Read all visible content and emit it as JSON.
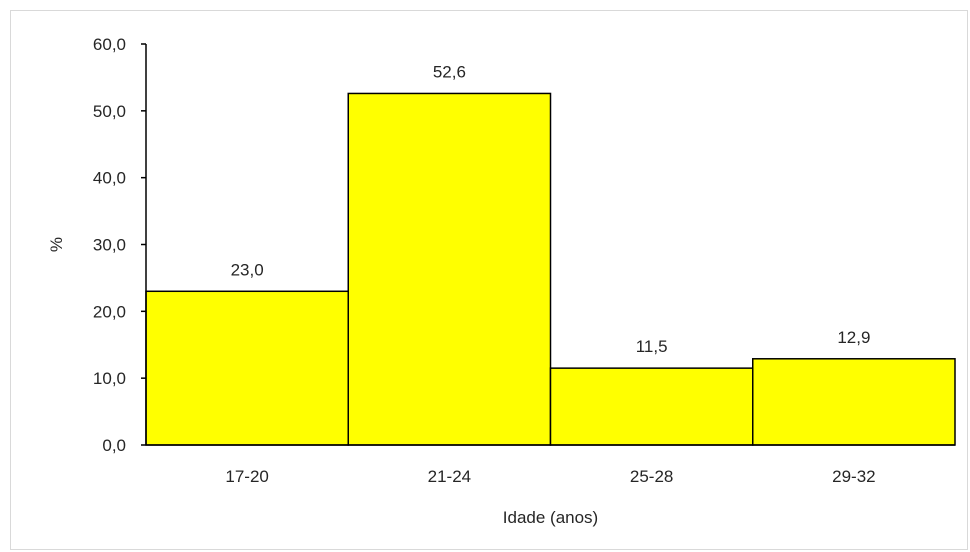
{
  "chart_data": {
    "type": "bar",
    "title": "",
    "xlabel": "Idade (anos)",
    "ylabel": "%",
    "categories": [
      "17-20",
      "21-24",
      "25-28",
      "29-32"
    ],
    "values": [
      23.0,
      52.6,
      11.5,
      12.9
    ],
    "value_labels": [
      "23,0",
      "52,6",
      "11,5",
      "12,9"
    ],
    "ylim": [
      0,
      60
    ],
    "yticks": [
      0,
      10,
      20,
      30,
      40,
      50,
      60
    ],
    "ytick_labels": [
      "0,0",
      "10,0",
      "20,0",
      "30,0",
      "40,0",
      "50,0",
      "60,0"
    ],
    "grid": false,
    "legend": "none",
    "bar_color": "#ffff00",
    "bar_edge_color": "#000000"
  }
}
